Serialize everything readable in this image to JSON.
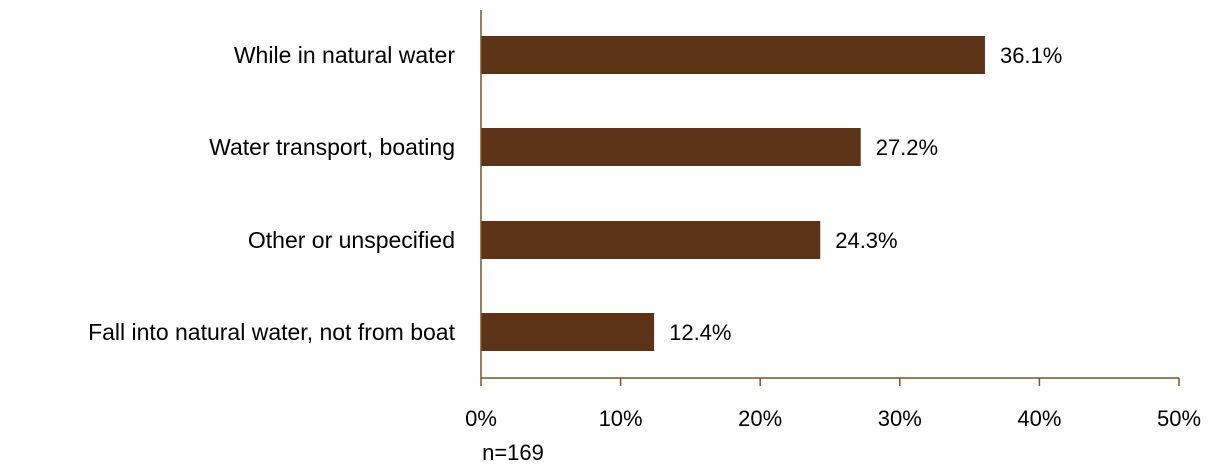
{
  "chart_data": {
    "type": "bar",
    "orientation": "horizontal",
    "categories": [
      "While in natural water",
      "Water transport, boating",
      "Other or unspecified",
      "Fall into natural water, not from boat"
    ],
    "values": [
      36.1,
      27.2,
      24.3,
      12.4
    ],
    "value_labels": [
      "36.1%",
      "27.2%",
      "24.3%",
      "12.4%"
    ],
    "xlim": [
      0,
      50
    ],
    "x_ticks": [
      0,
      10,
      20,
      30,
      40,
      50
    ],
    "x_tick_labels": [
      "0%",
      "10%",
      "20%",
      "30%",
      "40%",
      "50%"
    ],
    "grid": false,
    "legend": "none",
    "bar_color": "#5c3317",
    "axis_color": "#7a5230"
  },
  "footnote": "n=169"
}
